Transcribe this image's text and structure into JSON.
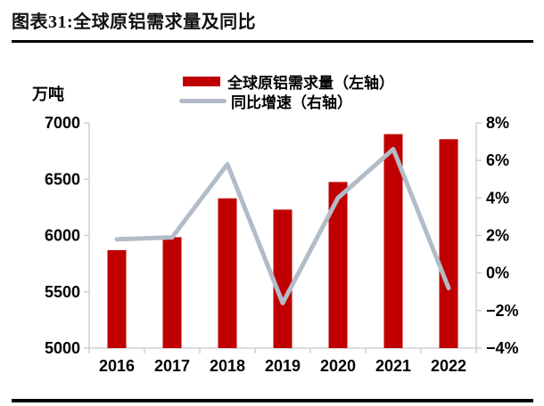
{
  "header": {
    "title": "图表31:全球原铝需求量及同比"
  },
  "legend": {
    "items": [
      {
        "label": "全球原铝需求量（左轴）",
        "swatch": "bar"
      },
      {
        "label": "同比增速（右轴）",
        "swatch": "line"
      }
    ]
  },
  "colors": {
    "bar": "#c00000",
    "line": "#b2bcc9",
    "axis": "#c9c9c9",
    "text": "#000000"
  },
  "chart_data": {
    "type": "bar+line",
    "title": "图表31:全球原铝需求量及同比",
    "categories": [
      "2016",
      "2017",
      "2018",
      "2019",
      "2020",
      "2021",
      "2022"
    ],
    "series": [
      {
        "name": "全球原铝需求量（左轴）",
        "type": "bar",
        "axis": "left",
        "color": "#c00000",
        "values": [
          5870,
          5985,
          6330,
          6230,
          6475,
          6900,
          6855
        ]
      },
      {
        "name": "同比增速（右轴）",
        "type": "line",
        "axis": "right",
        "color": "#b2bcc9",
        "values": [
          1.8,
          1.9,
          5.8,
          -1.6,
          4.0,
          6.6,
          -0.8
        ]
      }
    ],
    "left_axis": {
      "unit_label": "万吨",
      "min": 5000,
      "max": 7000,
      "step": 500,
      "tick_labels": [
        "7000",
        "6500",
        "6000",
        "5500",
        "5000"
      ]
    },
    "right_axis": {
      "min": -4,
      "max": 8,
      "step": 2,
      "tick_labels": [
        "8%",
        "6%",
        "4%",
        "2%",
        "0%",
        "−2%",
        "−4%"
      ]
    },
    "grid": false,
    "legend_position": "top-center"
  }
}
